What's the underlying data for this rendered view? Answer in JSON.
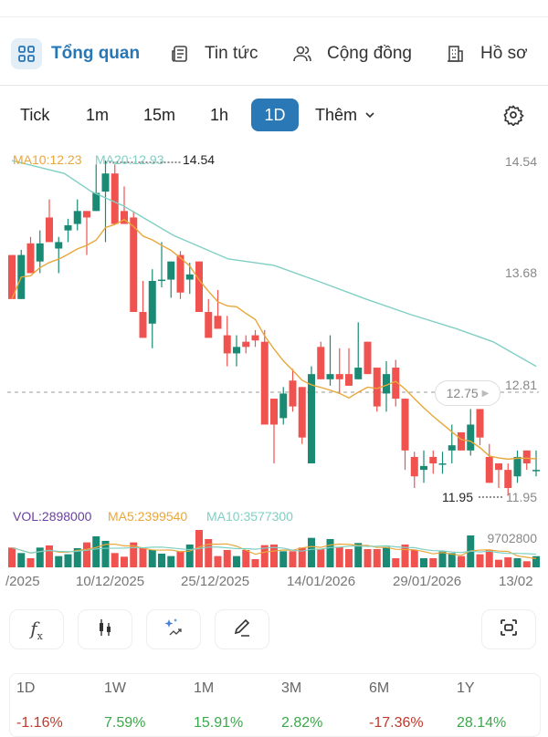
{
  "tabs": [
    {
      "label": "Tổng quan",
      "icon": "grid-icon",
      "active": true
    },
    {
      "label": "Tin tức",
      "icon": "newspaper-icon"
    },
    {
      "label": "Cộng đồng",
      "icon": "users-icon"
    },
    {
      "label": "Hồ sơ",
      "icon": "building-icon"
    }
  ],
  "ranges": [
    {
      "label": "Tick"
    },
    {
      "label": "1m"
    },
    {
      "label": "15m"
    },
    {
      "label": "1h"
    },
    {
      "label": "1D",
      "active": true
    },
    {
      "label": "Thêm"
    }
  ],
  "colors": {
    "up": "#1a8a74",
    "down": "#f0524f",
    "ma10": "#e8a73a",
    "ma20": "#7fcfc3",
    "accent": "#2a79b6",
    "vol": "#6a3fa0"
  },
  "legend": {
    "ma10": "MA10:12.23",
    "ma20": "MA20:12.93"
  },
  "volume_legend": {
    "vol": "VOL:2898000",
    "ma5": "MA5:2399540",
    "ma10": "MA10:3577300"
  },
  "price_axis": [
    "14.54",
    "13.68",
    "12.81"
  ],
  "current_price": "12.75",
  "high_label": "14.54",
  "low_label": "11.95",
  "low_axis_label": "11.95",
  "volume_max_label": "9702800",
  "dates": [
    "/2025",
    "10/12/2025",
    "25/12/2025",
    "14/01/2026",
    "29/01/2026",
    "13/02"
  ],
  "tools": [
    {
      "icon": "function-icon"
    },
    {
      "icon": "candlestick-icon"
    },
    {
      "icon": "ai-sparkle-icon"
    },
    {
      "icon": "pencil-icon"
    },
    {
      "icon": "fullscreen-icon"
    }
  ],
  "performance": [
    {
      "period": "1D",
      "value": "-1.16%"
    },
    {
      "period": "1W",
      "value": "7.59%"
    },
    {
      "period": "1M",
      "value": "15.91%"
    },
    {
      "period": "3M",
      "value": "2.82%"
    },
    {
      "period": "6M",
      "value": "-17.36%"
    },
    {
      "period": "1Y",
      "value": "28.14%"
    }
  ],
  "chart_data": {
    "type": "candlestick",
    "ylim": [
      11.95,
      14.54
    ],
    "ohlc": [
      [
        13.81,
        13.81,
        13.47,
        13.47
      ],
      [
        13.47,
        13.85,
        13.47,
        13.81
      ],
      [
        13.9,
        13.95,
        13.67,
        13.67
      ],
      [
        13.76,
        14.0,
        13.67,
        13.9
      ],
      [
        14.1,
        14.24,
        13.91,
        13.91
      ],
      [
        13.86,
        13.95,
        13.67,
        13.91
      ],
      [
        14.0,
        14.09,
        13.91,
        14.04
      ],
      [
        14.05,
        14.24,
        14.0,
        14.15
      ],
      [
        14.15,
        14.15,
        13.81,
        14.1
      ],
      [
        14.15,
        14.51,
        14.15,
        14.29
      ],
      [
        14.3,
        14.54,
        13.91,
        14.44
      ],
      [
        14.44,
        14.51,
        14.05,
        14.05
      ],
      [
        14.15,
        14.34,
        14.05,
        14.05
      ],
      [
        14.1,
        14.15,
        13.37,
        13.37
      ],
      [
        13.37,
        13.61,
        13.17,
        13.17
      ],
      [
        13.28,
        13.7,
        13.09,
        13.61
      ],
      [
        13.62,
        13.91,
        13.56,
        13.62
      ],
      [
        13.62,
        13.76,
        13.48,
        13.76
      ],
      [
        13.81,
        13.84,
        13.47,
        13.52
      ],
      [
        13.62,
        13.75,
        13.51,
        13.66
      ],
      [
        13.76,
        13.76,
        13.37,
        13.37
      ],
      [
        13.37,
        13.47,
        13.17,
        13.17
      ],
      [
        13.34,
        13.54,
        13.24,
        13.24
      ],
      [
        13.19,
        13.34,
        12.95,
        13.05
      ],
      [
        13.05,
        13.19,
        12.95,
        13.1
      ],
      [
        13.14,
        13.19,
        13.05,
        13.1
      ],
      [
        13.19,
        13.23,
        13.1,
        13.15
      ],
      [
        13.14,
        13.23,
        12.5,
        12.5
      ],
      [
        12.7,
        12.7,
        12.2,
        12.5
      ],
      [
        12.55,
        12.79,
        12.5,
        12.74
      ],
      [
        12.84,
        12.93,
        12.6,
        12.64
      ],
      [
        12.79,
        12.79,
        12.35,
        12.4
      ],
      [
        12.2,
        12.95,
        12.2,
        12.89
      ],
      [
        13.1,
        13.14,
        12.85,
        12.85
      ],
      [
        12.85,
        13.19,
        12.8,
        12.89
      ],
      [
        12.89,
        13.09,
        12.74,
        12.85
      ],
      [
        12.89,
        13.09,
        12.8,
        12.8
      ],
      [
        12.85,
        13.29,
        12.85,
        12.94
      ],
      [
        13.14,
        13.14,
        12.89,
        12.89
      ],
      [
        12.94,
        12.94,
        12.6,
        12.64
      ],
      [
        12.74,
        12.99,
        12.6,
        12.89
      ],
      [
        12.94,
        13.0,
        12.64,
        12.7
      ],
      [
        12.7,
        12.7,
        12.15,
        12.3
      ],
      [
        12.25,
        12.29,
        12.01,
        12.1
      ],
      [
        12.15,
        12.3,
        12.05,
        12.18
      ],
      [
        12.25,
        12.3,
        12.12,
        12.2
      ],
      [
        12.2,
        12.29,
        12.12,
        12.2
      ],
      [
        12.3,
        12.5,
        12.2,
        12.34
      ],
      [
        12.44,
        12.44,
        12.3,
        12.3
      ],
      [
        12.3,
        12.62,
        12.26,
        12.5
      ],
      [
        12.62,
        12.62,
        12.34,
        12.4
      ],
      [
        12.25,
        12.35,
        12.05,
        12.05
      ],
      [
        12.2,
        12.2,
        12.01,
        12.15
      ],
      [
        12.15,
        12.2,
        11.95,
        12.01
      ],
      [
        12.1,
        12.3,
        12.05,
        12.25
      ],
      [
        12.3,
        12.3,
        12.15,
        12.2
      ],
      [
        12.15,
        12.3,
        12.1,
        12.15
      ]
    ],
    "ma20": [
      [
        0,
        14.54
      ],
      [
        5.6,
        14.44
      ],
      [
        8.5,
        14.3
      ],
      [
        11.9,
        14.19
      ],
      [
        17.3,
        13.96
      ],
      [
        23.1,
        13.78
      ],
      [
        28,
        13.73
      ],
      [
        33,
        13.6
      ],
      [
        37.8,
        13.47
      ],
      [
        42.6,
        13.35
      ],
      [
        47.5,
        13.24
      ],
      [
        51.4,
        13.14
      ],
      [
        56,
        12.95
      ]
    ],
    "volume": [
      5130000,
      3710000,
      2370000,
      5130000,
      5680000,
      2920000,
      3390000,
      4970000,
      6470000,
      8050000,
      6860000,
      3710000,
      2760000,
      6470000,
      5130000,
      4500000,
      3550000,
      2920000,
      4180000,
      5920000,
      9702800,
      7340000,
      2920000,
      4500000,
      2920000,
      4500000,
      2130000,
      5760000,
      5920000,
      4180000,
      4180000,
      5130000,
      7650000,
      4730000,
      7340000,
      5290000,
      4730000,
      6310000,
      4730000,
      4730000,
      5290000,
      2370000,
      5920000,
      4500000,
      2370000,
      2370000,
      4100000,
      3710000,
      2920000,
      8280000,
      3390000,
      4500000,
      1970000,
      2600000,
      2370000,
      1580000,
      2898000
    ]
  }
}
